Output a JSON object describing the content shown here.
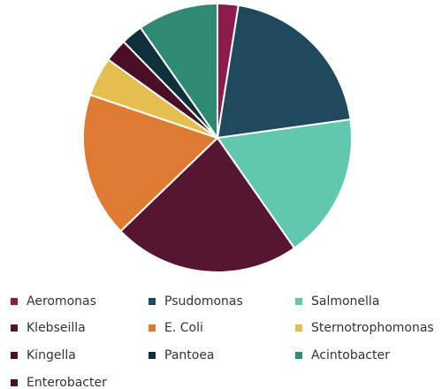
{
  "chart_data": {
    "type": "pie",
    "categories": [
      "Aeromonas",
      "Psudomonas",
      "Salmonella",
      "Klebseilla",
      "E. Coli",
      "Sternotrophomonas",
      "Kingella",
      "Pantoea",
      "Acintobacter",
      "Enterobacter"
    ],
    "values": [
      2.5,
      20.3,
      17.5,
      22.5,
      17.4,
      4.7,
      2.8,
      2.6,
      9.7,
      0
    ],
    "colors": [
      "#8c1c4c",
      "#1f4a5e",
      "#5fc8ae",
      "#561530",
      "#de7a32",
      "#e5be52",
      "#4a0f26",
      "#0f2f3a",
      "#2e8a72",
      "#4a0f26"
    ],
    "legend": "bottom"
  }
}
